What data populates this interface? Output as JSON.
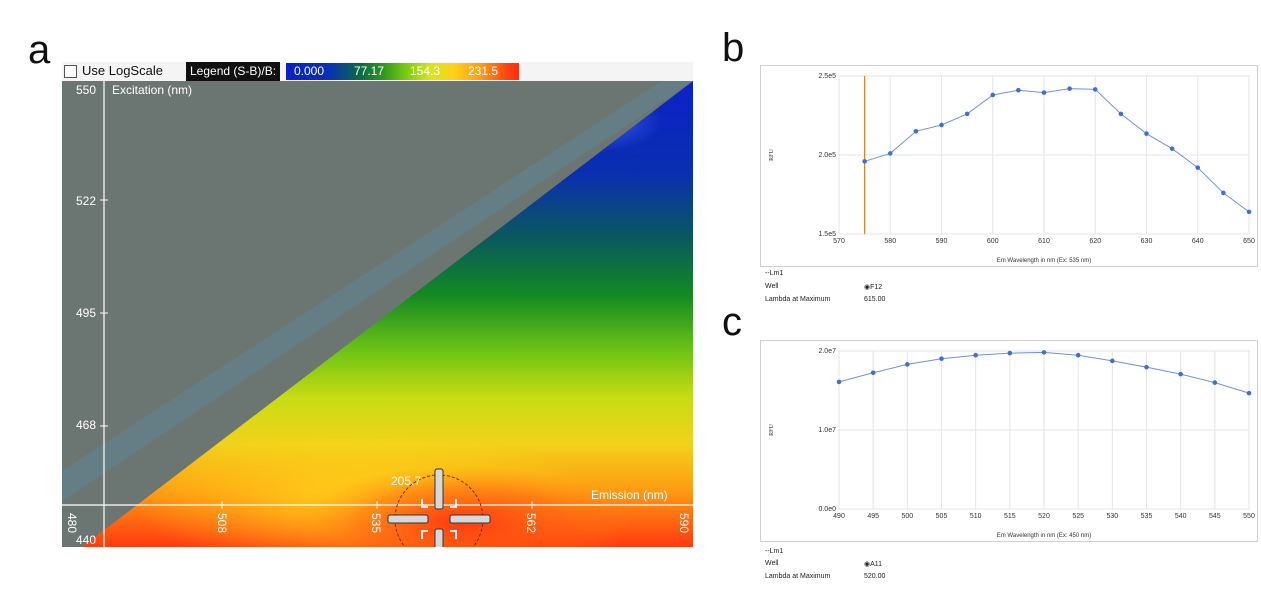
{
  "panels": {
    "a": "a",
    "b": "b",
    "c": "c"
  },
  "heatmap": {
    "checkbox_label": "Use LogScale",
    "legend_title": "Legend (S-B)/B:",
    "legend_ticks": [
      "0.000",
      "77.17",
      "154.3",
      "231.5"
    ],
    "y_axis_title": "Excitation (nm)",
    "x_axis_title": "Emission (nm)",
    "y_ticks": [
      "550",
      "522",
      "495",
      "468",
      "440"
    ],
    "x_ticks": [
      "480",
      "508",
      "535",
      "562",
      "590"
    ],
    "cursor_value": "205.7",
    "colors": {
      "mask": "#6b7673",
      "low": "#0b1fc4",
      "high": "#ff2a10"
    }
  },
  "chart_data": [
    {
      "type": "line",
      "x": [
        575,
        580,
        585,
        590,
        595,
        600,
        605,
        610,
        615,
        620,
        625,
        630,
        635,
        640,
        645,
        650
      ],
      "y": [
        196000,
        201000,
        215000,
        219000,
        226000,
        238000,
        241000,
        239500,
        242000,
        241500,
        226000,
        213500,
        204000,
        192000,
        176000,
        164000
      ],
      "xlim": [
        570,
        650
      ],
      "ylim": [
        150000,
        250000
      ],
      "x_ticks": [
        "570",
        "580",
        "590",
        "600",
        "610",
        "620",
        "630",
        "640",
        "650"
      ],
      "y_ticks": [
        "1.5e5",
        "2.0e5",
        "2.5e5"
      ],
      "xlabel": "Em Wavelength in nm (Ex: 535 nm)",
      "ylabel": "RFU",
      "marker_x": 575,
      "grid": true,
      "line_color": "#6f93d9",
      "marker_color": "#e0802a",
      "legend": {
        "series": "--Lm1",
        "well_label": "Well",
        "well_value": "◉F12",
        "lambda_label": "Lambda at Maximum",
        "lambda_value": "615.00"
      }
    },
    {
      "type": "line",
      "x": [
        490,
        495,
        500,
        505,
        510,
        515,
        520,
        525,
        530,
        535,
        540,
        545,
        550
      ],
      "y": [
        18100000,
        19400000,
        20600000,
        21400000,
        21900000,
        22200000,
        22300000,
        21900000,
        21100000,
        20200000,
        19200000,
        18000000,
        16500000
      ],
      "xlim": [
        490,
        550
      ],
      "ylim": [
        0,
        22500000
      ],
      "x_ticks": [
        "490",
        "495",
        "500",
        "505",
        "510",
        "515",
        "520",
        "525",
        "530",
        "535",
        "540",
        "545",
        "550"
      ],
      "y_ticks": [
        "0.0e0",
        "1.0e7",
        "2.0e7"
      ],
      "xlabel": "Em Wavelength in nm (Ex: 450 nm)",
      "ylabel": "RFU",
      "grid": true,
      "line_color": "#6f93d9",
      "legend": {
        "series": "--Lm1",
        "well_label": "Well",
        "well_value": "◉A11",
        "lambda_label": "Lambda at Maximum",
        "lambda_value": "520.00"
      }
    }
  ]
}
